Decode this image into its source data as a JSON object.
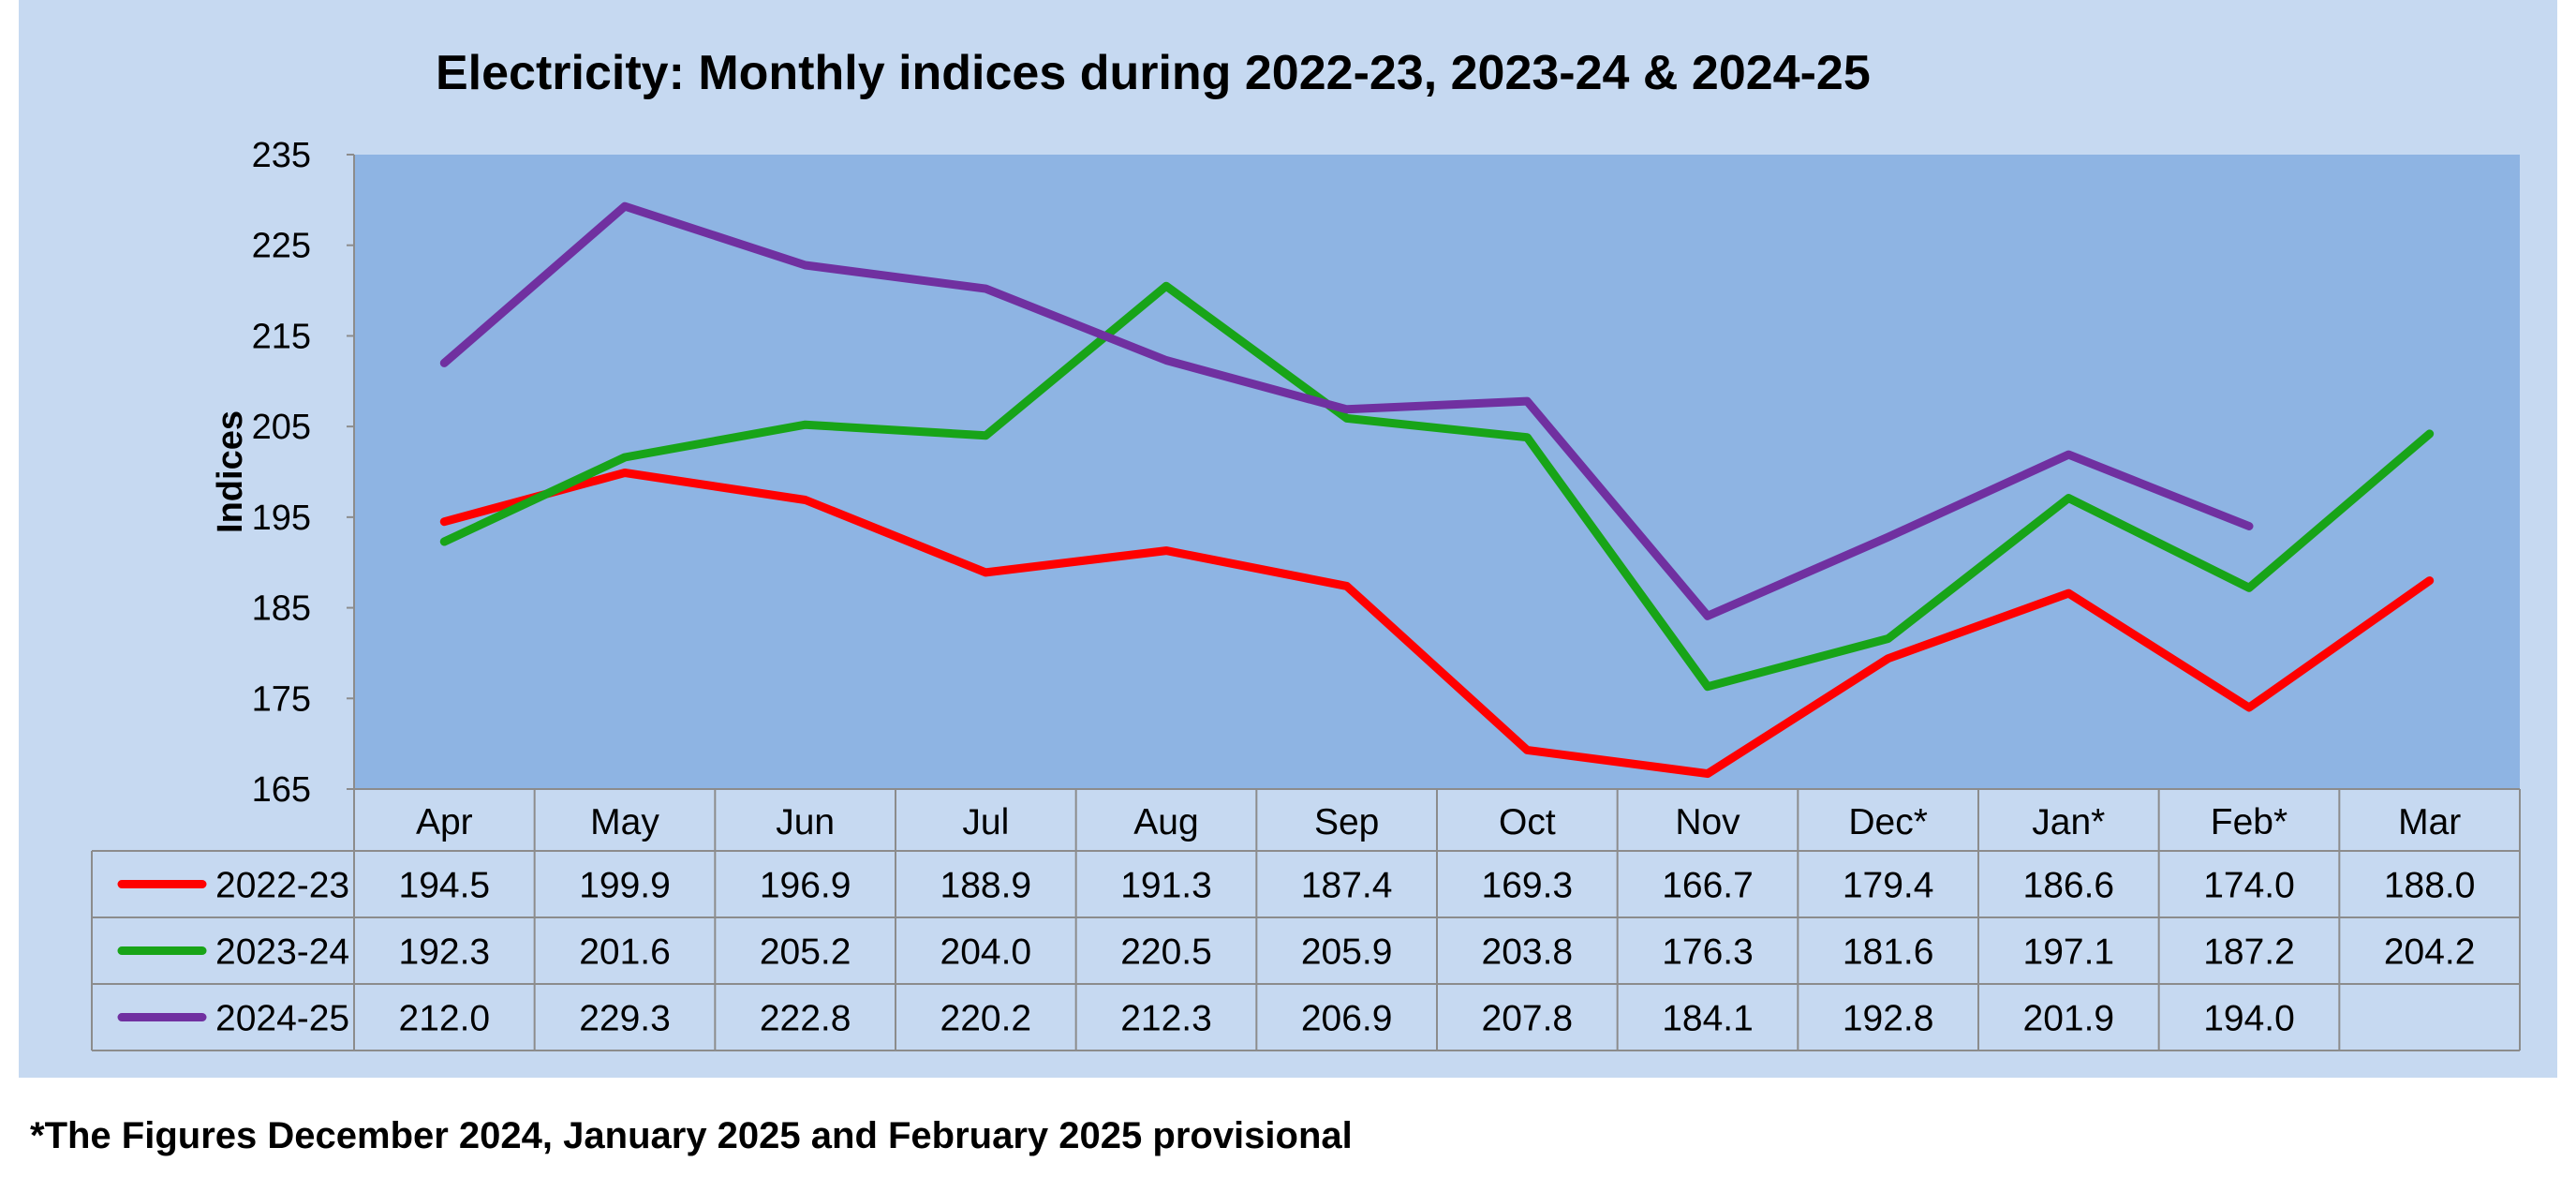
{
  "chart_data": {
    "type": "line",
    "title": "Electricity: Monthly indices during 2022-23, 2023-24 & 2024-25",
    "xlabel": "",
    "ylabel": "Indices",
    "ylim": [
      165,
      235
    ],
    "yticks": [
      165,
      175,
      185,
      195,
      205,
      215,
      225,
      235
    ],
    "grid": false,
    "legend": "data-table",
    "categories": [
      "Apr",
      "May",
      "Jun",
      "Jul",
      "Aug",
      "Sep",
      "Oct",
      "Nov",
      "Dec*",
      "Jan*",
      "Feb*",
      "Mar"
    ],
    "series": [
      {
        "name": "2022-23",
        "color": "#ff0000",
        "values": [
          194.5,
          199.9,
          196.9,
          188.9,
          191.3,
          187.4,
          169.3,
          166.7,
          179.4,
          186.6,
          174.0,
          188.0
        ],
        "labels": [
          "194.5",
          "199.9",
          "196.9",
          "188.9",
          "191.3",
          "187.4",
          "169.3",
          "166.7",
          "179.4",
          "186.6",
          "174.0",
          "188.0"
        ]
      },
      {
        "name": "2023-24",
        "color": "#18a418",
        "values": [
          192.3,
          201.6,
          205.2,
          204.0,
          220.5,
          205.9,
          203.8,
          176.3,
          181.6,
          197.1,
          187.2,
          204.2
        ],
        "labels": [
          "192.3",
          "201.6",
          "205.2",
          "204.0",
          "220.5",
          "205.9",
          "203.8",
          "176.3",
          "181.6",
          "197.1",
          "187.2",
          "204.2"
        ]
      },
      {
        "name": "2024-25",
        "color": "#7030a0",
        "values": [
          212.0,
          229.3,
          222.8,
          220.2,
          212.3,
          206.9,
          207.8,
          184.1,
          192.8,
          201.9,
          194.0,
          null
        ],
        "labels": [
          "212.0",
          "229.3",
          "222.8",
          "220.2",
          "212.3",
          "206.9",
          "207.8",
          "184.1",
          "192.8",
          "201.9",
          "194.0",
          ""
        ]
      }
    ],
    "colors": {
      "chart_background": "#c6d9f1",
      "plot_background": "#8eb4e3",
      "table_border": "#8c8c8c"
    }
  },
  "footnote": "*The Figures December 2024, January 2025 and February 2025 provisional"
}
